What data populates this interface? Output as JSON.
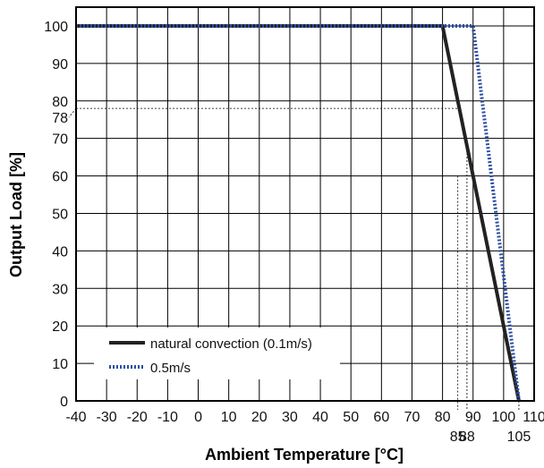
{
  "chart_data": {
    "type": "line",
    "title": "",
    "xlabel": "Ambient Temperature [°C]",
    "ylabel": "Output Load [%]",
    "xlim": [
      -40,
      110
    ],
    "ylim": [
      0,
      105
    ],
    "x_ticks": [
      -40,
      -30,
      -20,
      -10,
      0,
      10,
      20,
      30,
      40,
      50,
      60,
      70,
      80,
      90,
      100,
      110
    ],
    "y_ticks": [
      0,
      10,
      20,
      30,
      40,
      50,
      60,
      70,
      80,
      90,
      100
    ],
    "grid": true,
    "legend_position": "bottom-left",
    "series": [
      {
        "name": "natural convection (0.1m/s)",
        "style": "solid",
        "color": "#222222",
        "x": [
          -40,
          80,
          105
        ],
        "y": [
          100,
          100,
          0
        ]
      },
      {
        "name": "0.5m/s",
        "style": "dotted",
        "color": "#2d4fa3",
        "x": [
          -40,
          90,
          105
        ],
        "y": [
          100,
          100,
          0
        ]
      }
    ],
    "annotations": {
      "x_markers": [
        {
          "label": "85",
          "x": 85,
          "y": 60
        },
        {
          "label": "88",
          "x": 88,
          "y": 68
        },
        {
          "label": "105",
          "x": 105,
          "y": 0
        }
      ],
      "y_marker": {
        "label": "78",
        "y": 78
      }
    }
  }
}
